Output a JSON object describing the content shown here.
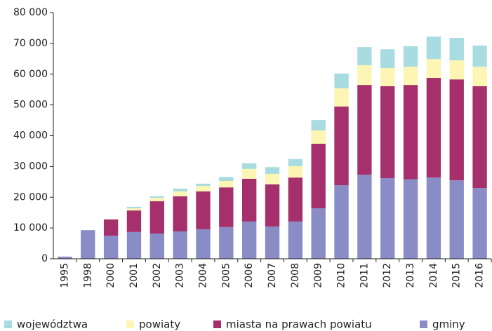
{
  "chart_data": {
    "type": "stacked_bar",
    "categories": [
      "1995",
      "1998",
      "2000",
      "2001",
      "2002",
      "2003",
      "2004",
      "2005",
      "2006",
      "2007",
      "2008",
      "2009",
      "2010",
      "2011",
      "2012",
      "2013",
      "2014",
      "2015",
      "2016"
    ],
    "series": [
      {
        "name": "województwa",
        "color": "#a9dce0",
        "values": [
          0,
          0,
          0,
          500,
          500,
          900,
          700,
          1300,
          1800,
          2200,
          2300,
          3400,
          4800,
          5900,
          6100,
          6700,
          7300,
          7300,
          6900
        ]
      },
      {
        "name": "powiaty",
        "color": "#fcf5b4",
        "values": [
          0,
          0,
          200,
          700,
          1100,
          1600,
          1800,
          2100,
          3200,
          3400,
          3700,
          4300,
          5900,
          6400,
          5900,
          5900,
          6100,
          6200,
          6300
        ]
      },
      {
        "name": "miasta na prawach powiatu",
        "color": "#a5306b",
        "values": [
          0,
          0,
          5300,
          7000,
          10500,
          11400,
          12300,
          12900,
          13900,
          13700,
          14300,
          21000,
          25600,
          29200,
          29900,
          30700,
          32400,
          32800,
          33100
        ]
      },
      {
        "name": "gminy",
        "color": "#8a8cc6",
        "values": [
          700,
          9300,
          7500,
          8700,
          8200,
          8900,
          9600,
          10300,
          12100,
          10500,
          12100,
          16400,
          23900,
          27300,
          26200,
          25800,
          26400,
          25500,
          23000
        ]
      }
    ],
    "ylim": [
      0,
      80000
    ],
    "yticks": [
      0,
      {
        "value": 10000,
        "label": "10 000"
      },
      {
        "value": 20000,
        "label": "20 000"
      },
      {
        "value": 30000,
        "label": "30 000"
      },
      {
        "value": 40000,
        "label": "40 000"
      },
      {
        "value": 50000,
        "label": "50 000"
      },
      {
        "value": 60000,
        "label": "60 000"
      },
      {
        "value": 70000,
        "label": "70 000"
      },
      {
        "value": 80000,
        "label": "80 000"
      }
    ],
    "grid": false,
    "legend": "bottom"
  }
}
